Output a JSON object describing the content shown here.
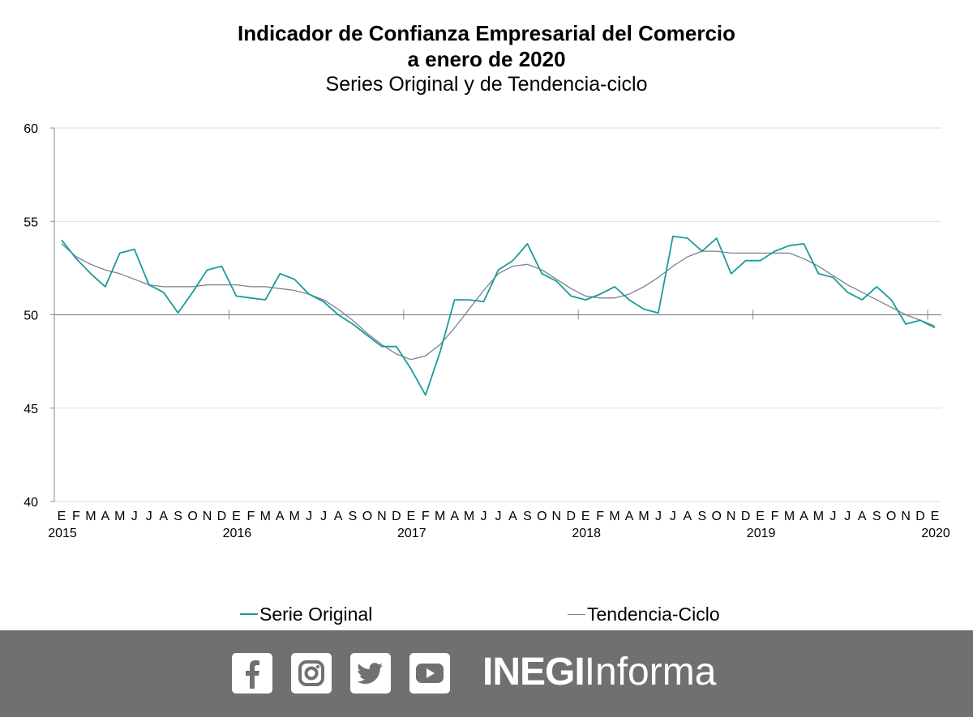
{
  "chart_data": {
    "type": "line",
    "title": "Indicador de Confianza Empresarial del Comercio",
    "title_line2": "a enero de 2020",
    "subtitle": "Series Original y de Tendencia-ciclo",
    "ylim": [
      40,
      60
    ],
    "yticks": [
      40,
      45,
      50,
      55,
      60
    ],
    "grid": true,
    "month_labels": [
      "E",
      "F",
      "M",
      "A",
      "M",
      "J",
      "J",
      "A",
      "S",
      "O",
      "N",
      "D",
      "E",
      "F",
      "M",
      "A",
      "M",
      "J",
      "J",
      "A",
      "S",
      "O",
      "N",
      "D",
      "E",
      "F",
      "M",
      "A",
      "M",
      "J",
      "J",
      "A",
      "S",
      "O",
      "N",
      "D",
      "E",
      "F",
      "M",
      "A",
      "M",
      "J",
      "J",
      "A",
      "S",
      "O",
      "N",
      "D",
      "E",
      "F",
      "M",
      "A",
      "M",
      "J",
      "J",
      "A",
      "S",
      "O",
      "N",
      "D",
      "E"
    ],
    "year_labels": [
      {
        "label": "2015",
        "index": 0
      },
      {
        "label": "2016",
        "index": 12
      },
      {
        "label": "2017",
        "index": 24
      },
      {
        "label": "2018",
        "index": 36
      },
      {
        "label": "2019",
        "index": 48
      },
      {
        "label": "2020",
        "index": 60
      }
    ],
    "series": [
      {
        "name": "Serie Original",
        "color": "#1a9c9a",
        "values": [
          54.0,
          53.0,
          52.2,
          51.5,
          53.3,
          53.5,
          51.6,
          51.2,
          50.1,
          51.2,
          52.4,
          52.6,
          51.0,
          50.9,
          50.8,
          52.2,
          51.9,
          51.1,
          50.7,
          50.0,
          49.5,
          48.9,
          48.3,
          48.3,
          47.1,
          45.7,
          48.0,
          50.8,
          50.8,
          50.7,
          52.4,
          52.9,
          53.8,
          52.2,
          51.8,
          51.0,
          50.8,
          51.1,
          51.5,
          50.8,
          50.3,
          50.1,
          54.2,
          54.1,
          53.4,
          54.1,
          52.2,
          52.9,
          52.9,
          53.4,
          53.7,
          53.8,
          52.2,
          52.0,
          51.2,
          50.8,
          51.5,
          50.8,
          49.5,
          49.7,
          49.3
        ]
      },
      {
        "name": "Tendencia-Ciclo",
        "color": "#7e7f94",
        "values": [
          53.8,
          53.1,
          52.7,
          52.4,
          52.2,
          51.9,
          51.6,
          51.5,
          51.5,
          51.5,
          51.6,
          51.6,
          51.6,
          51.5,
          51.5,
          51.4,
          51.3,
          51.1,
          50.8,
          50.3,
          49.7,
          49.0,
          48.4,
          47.9,
          47.6,
          47.8,
          48.4,
          49.3,
          50.3,
          51.3,
          52.2,
          52.6,
          52.7,
          52.4,
          51.9,
          51.4,
          51.0,
          50.9,
          50.9,
          51.1,
          51.5,
          52.0,
          52.6,
          53.1,
          53.4,
          53.4,
          53.3,
          53.3,
          53.3,
          53.3,
          53.3,
          53.0,
          52.6,
          52.1,
          51.6,
          51.2,
          50.8,
          50.4,
          50.0,
          49.7,
          49.4
        ]
      }
    ],
    "legend": [
      "Serie Original",
      "Tendencia-Ciclo"
    ]
  },
  "footer": {
    "social_icons": [
      "facebook-icon",
      "instagram-icon",
      "twitter-icon",
      "youtube-icon"
    ],
    "brand_bold": "INEGI",
    "brand_light": "Informa"
  }
}
